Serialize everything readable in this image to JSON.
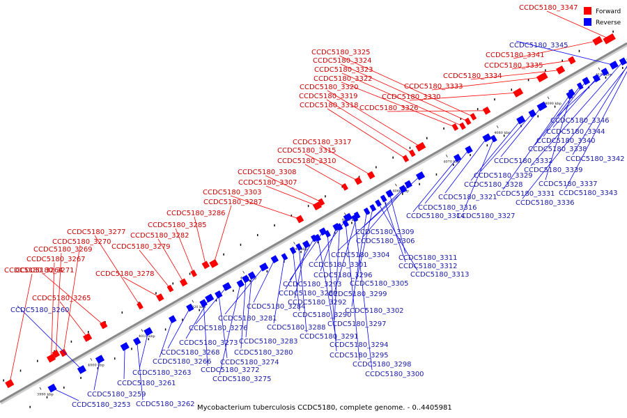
{
  "caption": "Mycobacterium tuberculosis CCDC5180, complete genome. - 0..4405981",
  "legend": [
    {
      "label": "Forward",
      "color": "#ff0000"
    },
    {
      "label": "Reverse",
      "color": "#0000ff"
    }
  ],
  "colors": {
    "forward": "#ff0000",
    "reverse": "#0000ff",
    "forward_label": "#cc0000",
    "reverse_label": "#1a1aa8",
    "axis": "#888888"
  },
  "scale_ticks": [
    "3990 kbp",
    "4000 kbp",
    "4010 kbp",
    "4020 kbp",
    "4030 kbp",
    "4040 kbp",
    "4050 kbp",
    "4060 kbp",
    "4070 kbp",
    "4080 kbp",
    "4090 kbp",
    "4100 kbp"
  ],
  "forward_genes": [
    "CCDC5180_3347",
    "CCDC5180_3341",
    "CCDC5180_3335",
    "CCDC5180_3334",
    "CCDC5180_3333",
    "CCDC5180_3330",
    "CCDC5180_3326",
    "CCDC5180_3325",
    "CCDC5180_3324",
    "CCDC5180_3323",
    "CCDC5180_3322",
    "CCDC5180_3320",
    "CCDC5180_3319",
    "CCDC5180_3318",
    "CCDC5180_3317",
    "CCDC5180_3315",
    "CCDC5180_3310",
    "CCDC5180_3308",
    "CCDC5180_3307",
    "CCDC5180_3303",
    "CCDC5180_3287",
    "CCDC5180_3286",
    "CCDC5180_3285",
    "CCDC5180_3282",
    "CCDC5180_3279",
    "CCDC5180_3278",
    "CCDC5180_3277",
    "CCDC5180_3270",
    "CCDC5180_3269",
    "CCDC5180_3267",
    "CCDC5180_3271",
    "CCDC5180_3264",
    "CCDC5180_3265"
  ],
  "reverse_genes": [
    "CCDC5180_3345",
    "CCDC5180_3346",
    "CCDC5180_3344",
    "CCDC5180_3340",
    "CCDC5180_3338",
    "CCDC5180_3342",
    "CCDC5180_3339",
    "CCDC5180_3332",
    "CCDC5180_3329",
    "CCDC5180_3337",
    "CCDC5180_3343",
    "CCDC5180_3328",
    "CCDC5180_3331",
    "CCDC5180_3336",
    "CCDC5180_3321",
    "CCDC5180_3316",
    "CCDC5180_3327",
    "CCDC5180_3314",
    "CCDC5180_3309",
    "CCDC5180_3306",
    "CCDC5180_3304",
    "CCDC5180_3311",
    "CCDC5180_3312",
    "CCDC5180_3313",
    "CCDC5180_3301",
    "CCDC5180_3296",
    "CCDC5180_3305",
    "CCDC5180_3293",
    "CCDC5180_3289",
    "CCDC5180_3299",
    "CCDC5180_3292",
    "CCDC5180_3284",
    "CCDC5180_3290",
    "CCDC5180_3302",
    "CCDC5180_3281",
    "CCDC5180_3288",
    "CCDC5180_3297",
    "CCDC5180_3276",
    "CCDC5180_3283",
    "CCDC5180_3291",
    "CCDC5180_3273",
    "CCDC5180_3294",
    "CCDC5180_3268",
    "CCDC5180_3280",
    "CCDC5180_3295",
    "CCDC5180_3266",
    "CCDC5180_3274",
    "CCDC5180_3298",
    "CCDC5180_3263",
    "CCDC5180_3272",
    "CCDC5180_3300",
    "CCDC5180_3275",
    "CCDC5180_3261",
    "CCDC5180_3259",
    "CCDC5180_3253",
    "CCDC5180_3262",
    "CCDC5180_3260"
  ]
}
